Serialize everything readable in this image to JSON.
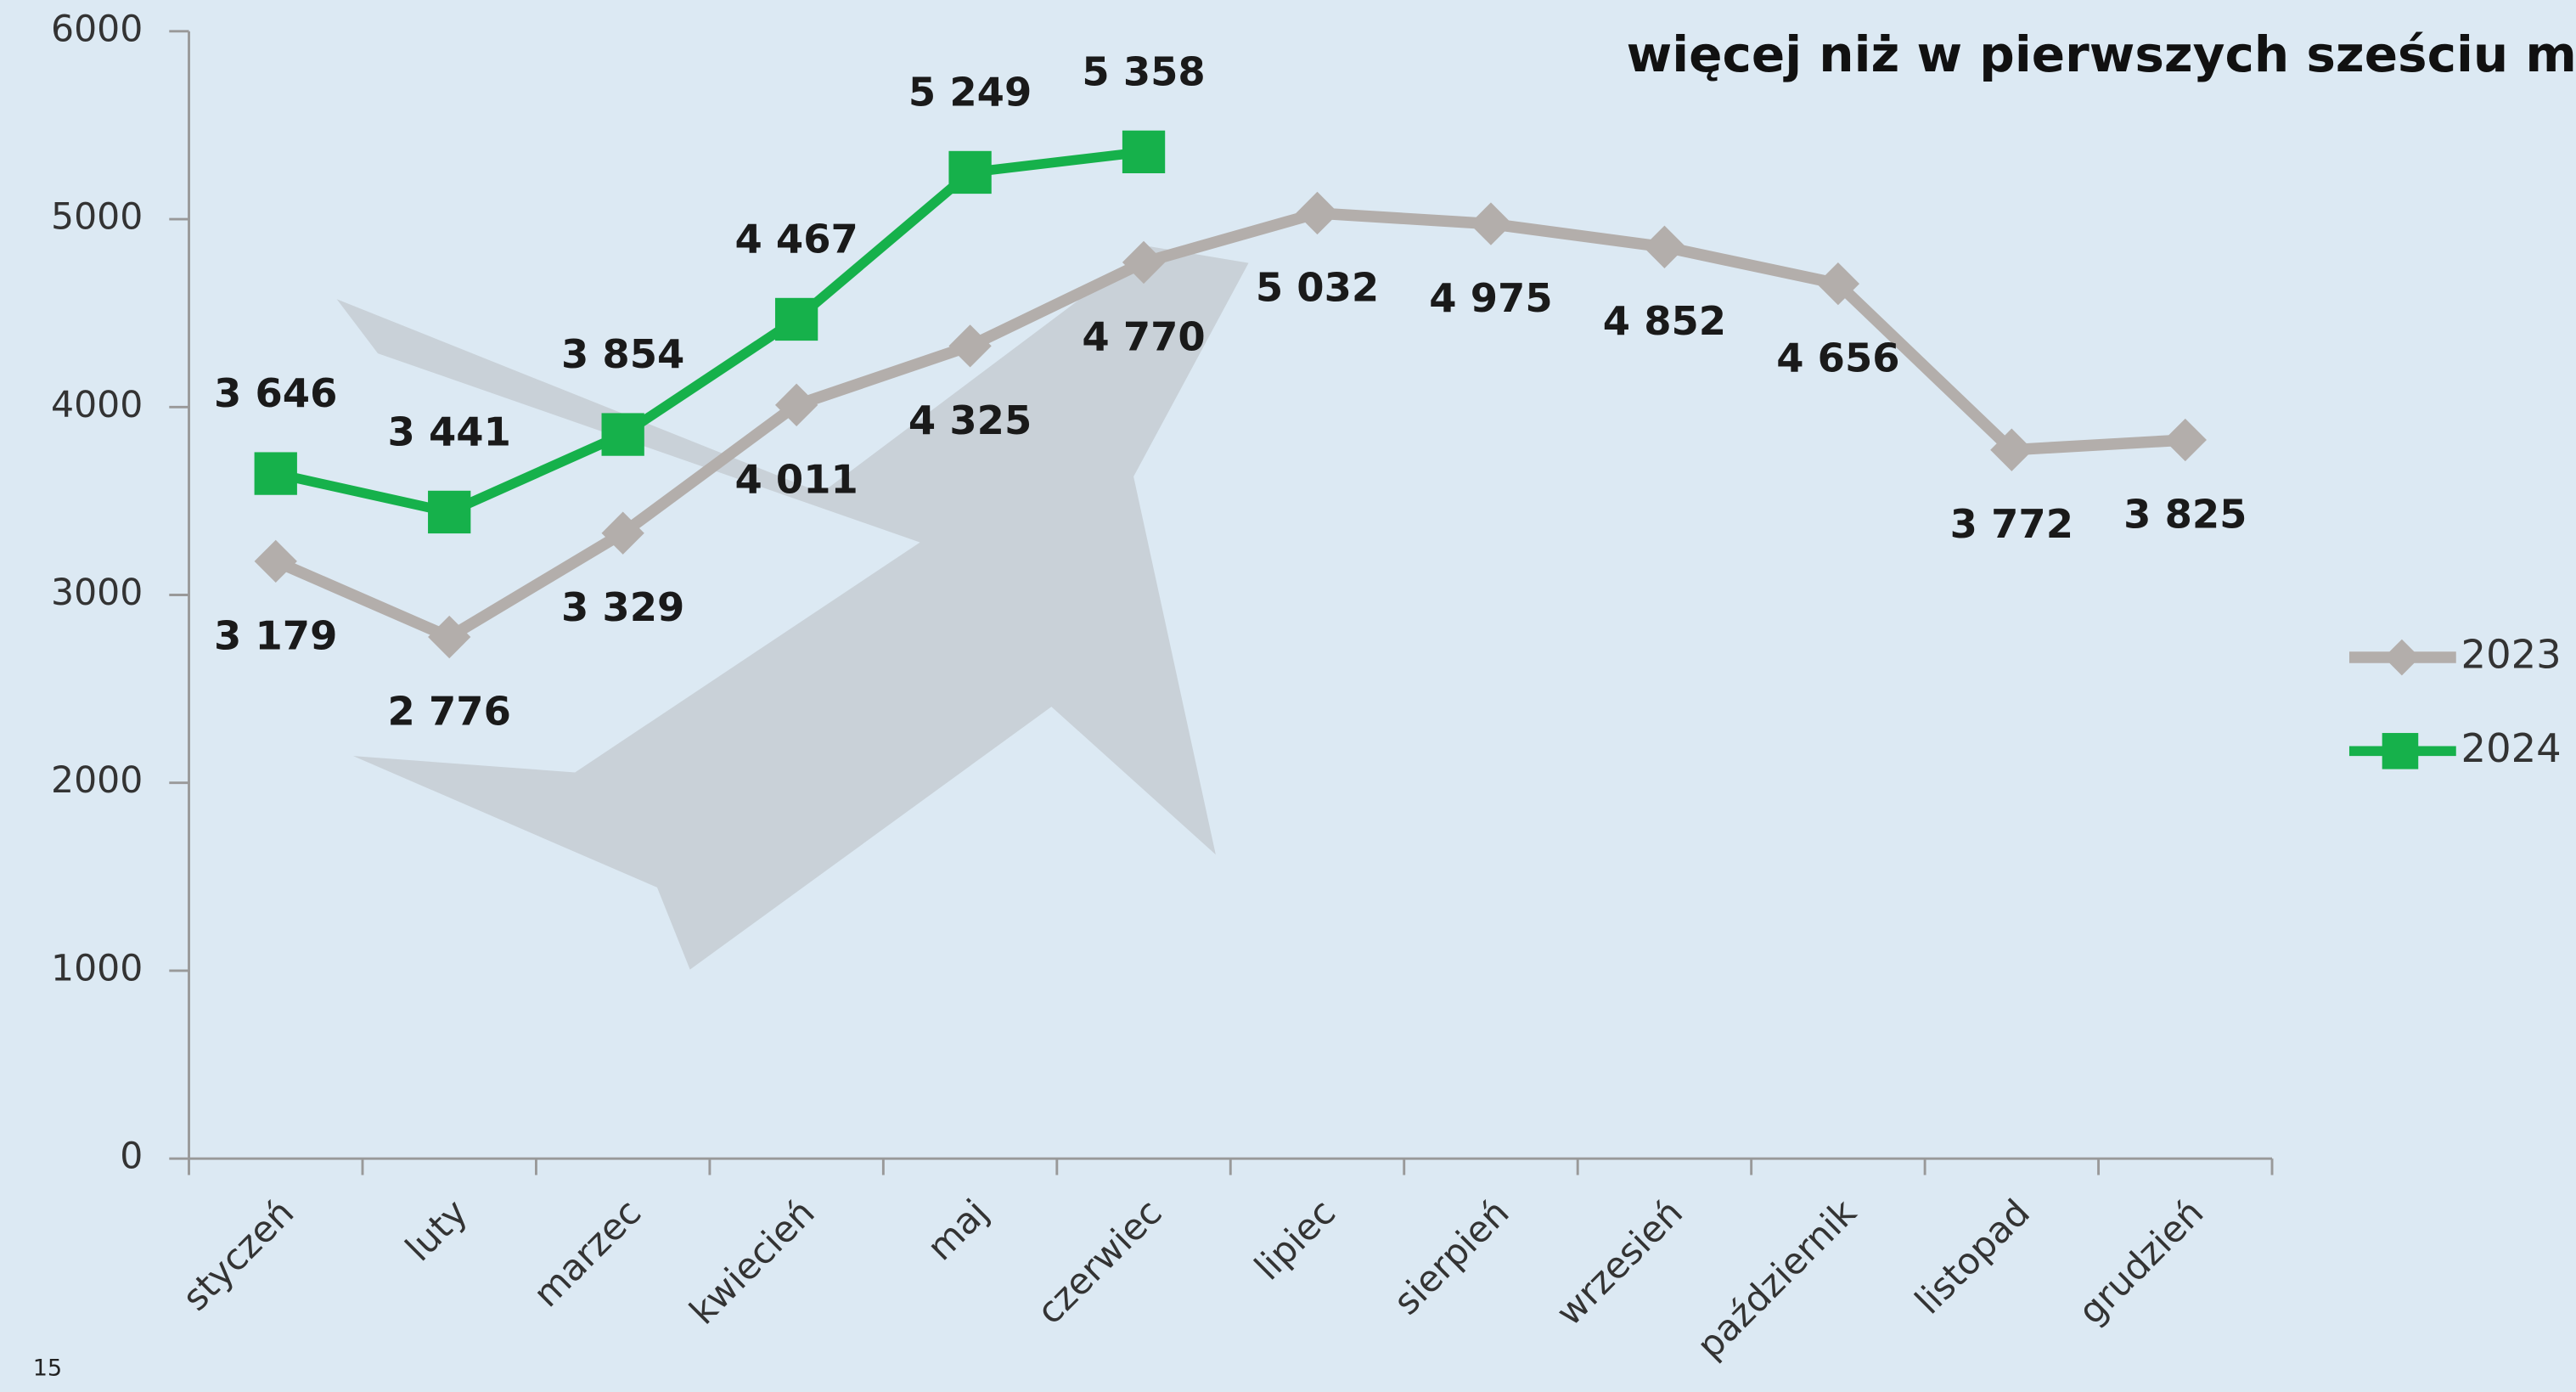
{
  "chart_data": {
    "type": "line",
    "title": "więcej niż w pierwszych sześciu m",
    "page_number": "15",
    "categories": [
      "styczeń",
      "luty",
      "marzec",
      "kwiecień",
      "maj",
      "czerwiec",
      "lipiec",
      "sierpień",
      "wrzesień",
      "październik",
      "listopad",
      "grudzień"
    ],
    "series": [
      {
        "name": "2023",
        "color": "#b3aeab",
        "marker": "diamond",
        "values": [
          3179,
          2776,
          3329,
          4011,
          4325,
          4770,
          5032,
          4975,
          4852,
          4656,
          3772,
          3825
        ],
        "value_labels": [
          "3 179",
          "2 776",
          "3 329",
          "4 011",
          "4 325",
          "4 770",
          "5 032",
          "4 975",
          "4 852",
          "4 656",
          "3 772",
          "3 825"
        ]
      },
      {
        "name": "2024",
        "color": "#16b14b",
        "marker": "square",
        "values": [
          3646,
          3441,
          3854,
          4467,
          5249,
          5358,
          null,
          null,
          null,
          null,
          null,
          null
        ],
        "value_labels": [
          "3 646",
          "3 441",
          "3 854",
          "4 467",
          "5 249",
          "5 358",
          null,
          null,
          null,
          null,
          null,
          null
        ]
      }
    ],
    "ylim": [
      0,
      6000
    ],
    "yticks": [
      0,
      1000,
      2000,
      3000,
      4000,
      5000,
      6000
    ],
    "legend": "right"
  }
}
